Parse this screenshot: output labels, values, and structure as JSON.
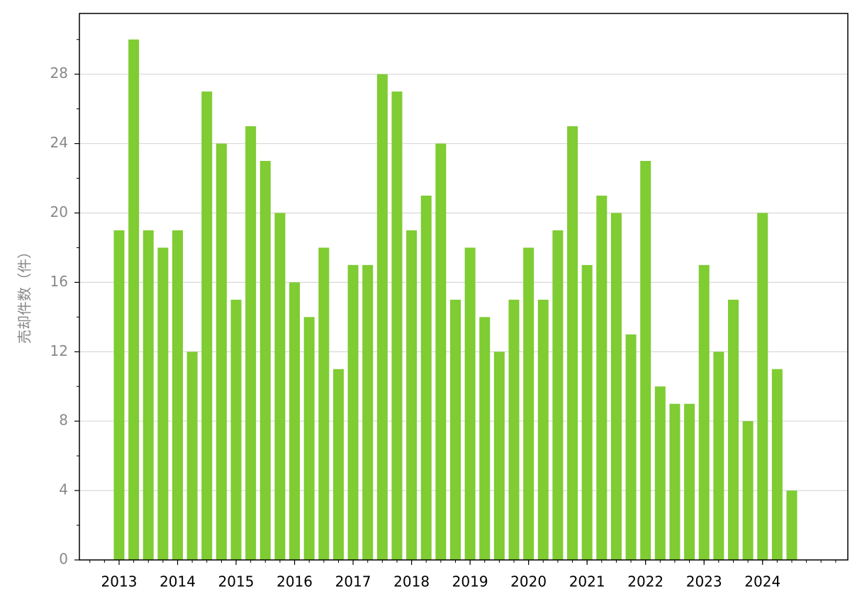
{
  "chart_data": {
    "type": "bar",
    "y_label": "売却件数（件）",
    "categories": [
      "2013",
      null,
      null,
      null,
      "2014",
      null,
      null,
      null,
      "2015",
      null,
      null,
      null,
      "2016",
      null,
      null,
      null,
      "2017",
      null,
      null,
      null,
      "2018",
      null,
      null,
      null,
      "2019",
      null,
      null,
      null,
      "2020",
      null,
      null,
      null,
      "2021",
      null,
      null,
      null,
      "2022",
      null,
      null,
      null,
      "2023",
      null,
      null,
      null,
      "2024",
      null,
      null
    ],
    "values": [
      19,
      30,
      19,
      18,
      19,
      12,
      27,
      24,
      15,
      25,
      23,
      20,
      16,
      14,
      18,
      11,
      17,
      17,
      28,
      27,
      19,
      21,
      24,
      15,
      18,
      14,
      12,
      15,
      18,
      15,
      19,
      25,
      17,
      21,
      20,
      13,
      23,
      10,
      9,
      9,
      17,
      12,
      15,
      8,
      20,
      11,
      4
    ],
    "color": "#7fcc33",
    "ylim": [
      0,
      31.5
    ],
    "yticks": [
      0,
      4,
      8,
      12,
      16,
      20,
      24,
      28
    ],
    "grid": true
  }
}
